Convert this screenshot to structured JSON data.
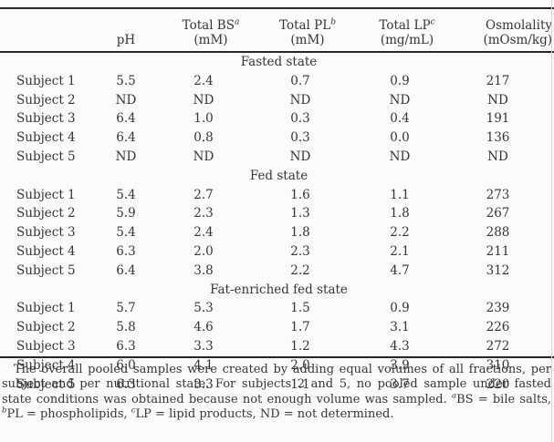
{
  "table": {
    "columns": [
      {
        "title": "",
        "sup": "",
        "unit": ""
      },
      {
        "title": "",
        "sup": "",
        "unit": "pH"
      },
      {
        "title": "Total BS",
        "sup": "a",
        "unit": "(mM)"
      },
      {
        "title": "Total PL",
        "sup": "b",
        "unit": "(mM)"
      },
      {
        "title": "Total LP",
        "sup": "c",
        "unit": "(mg/mL)"
      },
      {
        "title": "Osmolality",
        "sup": "",
        "unit": "(mOsm/kg)"
      }
    ],
    "sections": [
      {
        "label": "Fasted state",
        "rows": [
          {
            "label": "Subject 1",
            "values": [
              "5.5",
              "2.4",
              "0.7",
              "0.9",
              "217"
            ]
          },
          {
            "label": "Subject 2",
            "values": [
              "ND",
              "ND",
              "ND",
              "ND",
              "ND"
            ]
          },
          {
            "label": "Subject 3",
            "values": [
              "6.4",
              "1.0",
              "0.3",
              "0.4",
              "191"
            ]
          },
          {
            "label": "Subject 4",
            "values": [
              "6.4",
              "0.8",
              "0.3",
              "0.0",
              "136"
            ]
          },
          {
            "label": "Subject 5",
            "values": [
              "ND",
              "ND",
              "ND",
              "ND",
              "ND"
            ]
          }
        ]
      },
      {
        "label": "Fed state",
        "rows": [
          {
            "label": "Subject 1",
            "values": [
              "5.4",
              "2.7",
              "1.6",
              "1.1",
              "273"
            ]
          },
          {
            "label": "Subject 2",
            "values": [
              "5.9",
              "2.3",
              "1.3",
              "1.8",
              "267"
            ]
          },
          {
            "label": "Subject 3",
            "values": [
              "5.4",
              "2.4",
              "1.8",
              "2.2",
              "288"
            ]
          },
          {
            "label": "Subject 4",
            "values": [
              "6.3",
              "2.0",
              "2.3",
              "2.1",
              "211"
            ]
          },
          {
            "label": "Subject 5",
            "values": [
              "6.4",
              "3.8",
              "2.2",
              "4.7",
              "312"
            ]
          }
        ]
      },
      {
        "label": "Fat-enriched fed state",
        "rows": [
          {
            "label": "Subject 1",
            "values": [
              "5.7",
              "5.3",
              "1.5",
              "0.9",
              "239"
            ]
          },
          {
            "label": "Subject 2",
            "values": [
              "5.8",
              "4.6",
              "1.7",
              "3.1",
              "226"
            ]
          },
          {
            "label": "Subject 3",
            "values": [
              "6.3",
              "3.3",
              "1.2",
              "4.3",
              "272"
            ]
          },
          {
            "label": "Subject 4",
            "values": [
              "6.0",
              "4.1",
              "2.0",
              "3.9",
              "310"
            ]
          },
          {
            "label": "Subject 5",
            "values": [
              "6.3",
              "3.3",
              "1.1",
              "3.7",
              "220"
            ]
          }
        ]
      }
    ]
  },
  "footnote": {
    "body": "The overall pooled samples were created by adding equal volumes of all fractions, per subject and per nutritional state. For subjects 2 and 5, no pooled sample under fasted state conditions was obtained because not enough volume was sampled. ",
    "sup_a": "a",
    "seg_a": "BS = bile salts, ",
    "sup_b": "b",
    "seg_b": "PL = phospholipids, ",
    "sup_c": "c",
    "seg_c": "LP = lipid products, ND = not determined."
  }
}
